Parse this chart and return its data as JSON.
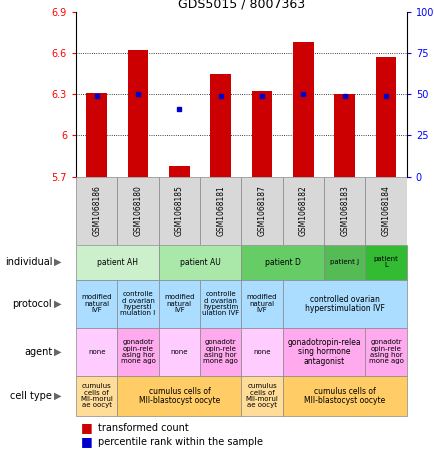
{
  "title": "GDS5015 / 8007363",
  "samples": [
    "GSM1068186",
    "GSM1068180",
    "GSM1068185",
    "GSM1068181",
    "GSM1068187",
    "GSM1068182",
    "GSM1068183",
    "GSM1068184"
  ],
  "bar_values": [
    6.31,
    6.62,
    5.78,
    6.45,
    6.32,
    6.68,
    6.3,
    6.57
  ],
  "dot_values": [
    6.285,
    6.3,
    6.19,
    6.285,
    6.285,
    6.3,
    6.285,
    6.285
  ],
  "ylim": [
    5.7,
    6.9
  ],
  "yticks_left": [
    5.7,
    6.0,
    6.3,
    6.6,
    6.9
  ],
  "ytick_labels_left": [
    "5.7",
    "6",
    "6.3",
    "6.6",
    "6.9"
  ],
  "yticks_right_vals": [
    0,
    25,
    50,
    75,
    100
  ],
  "ytick_labels_right": [
    "0",
    "25",
    "50",
    "75",
    "100%"
  ],
  "grid_lines": [
    6.0,
    6.3,
    6.6
  ],
  "individual_groups": [
    {
      "label": "patient AH",
      "start": 0,
      "end": 2,
      "color": "#ccf0cc"
    },
    {
      "label": "patient AU",
      "start": 2,
      "end": 4,
      "color": "#aae8aa"
    },
    {
      "label": "patient D",
      "start": 4,
      "end": 6,
      "color": "#66cc66"
    },
    {
      "label": "patient J",
      "start": 6,
      "end": 7,
      "color": "#55bb55"
    },
    {
      "label": "patient\nL",
      "start": 7,
      "end": 8,
      "color": "#33bb33"
    }
  ],
  "protocol_cells": [
    {
      "label": "modified\nnatural\nIVF",
      "start": 0,
      "end": 1,
      "color": "#aaddff"
    },
    {
      "label": "controlle\nd ovarian\nhypersti\nmulation I",
      "start": 1,
      "end": 2,
      "color": "#aaddff"
    },
    {
      "label": "modified\nnatural\nIVF",
      "start": 2,
      "end": 3,
      "color": "#aaddff"
    },
    {
      "label": "controlle\nd ovarian\nhyperstim\nulation IVF",
      "start": 3,
      "end": 4,
      "color": "#aaddff"
    },
    {
      "label": "modified\nnatural\nIVF",
      "start": 4,
      "end": 5,
      "color": "#aaddff"
    },
    {
      "label": "controlled ovarian\nhyperstimulation IVF",
      "start": 5,
      "end": 8,
      "color": "#aaddff"
    }
  ],
  "agent_cells": [
    {
      "label": "none",
      "start": 0,
      "end": 1,
      "color": "#ffccff"
    },
    {
      "label": "gonadotr\nopin-rele\nasing hor\nmone ago",
      "start": 1,
      "end": 2,
      "color": "#ffaaee"
    },
    {
      "label": "none",
      "start": 2,
      "end": 3,
      "color": "#ffccff"
    },
    {
      "label": "gonadotr\nopin-rele\nasing hor\nmone ago",
      "start": 3,
      "end": 4,
      "color": "#ffaaee"
    },
    {
      "label": "none",
      "start": 4,
      "end": 5,
      "color": "#ffccff"
    },
    {
      "label": "gonadotropin-relea\nsing hormone\nantagonist",
      "start": 5,
      "end": 7,
      "color": "#ffaaee"
    },
    {
      "label": "gonadotr\nopin-rele\nasing hor\nmone ago",
      "start": 7,
      "end": 8,
      "color": "#ffaaee"
    }
  ],
  "celltype_cells": [
    {
      "label": "cumulus\ncells of\nMII-morul\nae oocyt",
      "start": 0,
      "end": 1,
      "color": "#ffdd99"
    },
    {
      "label": "cumulus cells of\nMII-blastocyst oocyte",
      "start": 1,
      "end": 4,
      "color": "#ffcc66"
    },
    {
      "label": "cumulus\ncells of\nMII-morul\nae oocyt",
      "start": 4,
      "end": 5,
      "color": "#ffdd99"
    },
    {
      "label": "cumulus cells of\nMII-blastocyst oocyte",
      "start": 5,
      "end": 8,
      "color": "#ffcc66"
    }
  ],
  "row_labels": [
    "individual",
    "protocol",
    "agent",
    "cell type"
  ],
  "bar_color": "#cc0000",
  "dot_color": "#0000cc",
  "sample_bg": "#d8d8d8"
}
